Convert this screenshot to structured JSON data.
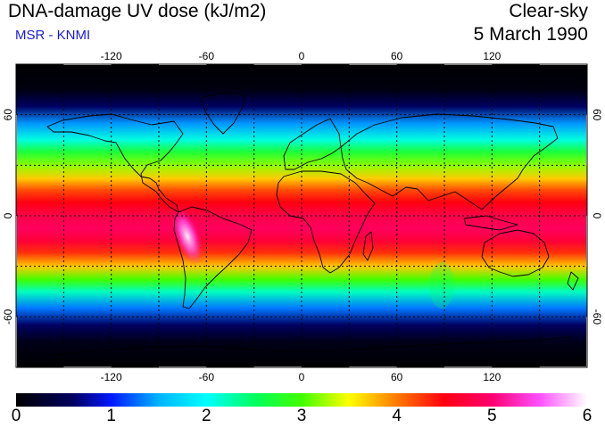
{
  "header": {
    "title": "DNA-damage UV dose (kJ/m2)",
    "subtitle": "MSR - KNMI",
    "condition": "Clear-sky",
    "date": "5 March 1990"
  },
  "map": {
    "projection": "equirectangular",
    "lon_range": [
      -180,
      180
    ],
    "lat_range": [
      -90,
      90
    ],
    "grid_lons": [
      -150,
      -120,
      -90,
      -60,
      -30,
      0,
      30,
      60,
      90,
      120,
      150
    ],
    "grid_lats": [
      -60,
      -30,
      0,
      30,
      60
    ],
    "lon_tick_labels": [
      {
        "lon": -120,
        "text": "-120"
      },
      {
        "lon": -60,
        "text": "-60"
      },
      {
        "lon": 0,
        "text": "0"
      },
      {
        "lon": 60,
        "text": "60"
      },
      {
        "lon": 120,
        "text": "120"
      }
    ],
    "lat_tick_labels": [
      {
        "lat": 60,
        "text": "60"
      },
      {
        "lat": 0,
        "text": "0"
      },
      {
        "lat": -60,
        "text": "-60"
      }
    ],
    "dose_profile": [
      {
        "lat": 90,
        "dose": 0.0
      },
      {
        "lat": 75,
        "dose": 0.1
      },
      {
        "lat": 65,
        "dose": 0.6
      },
      {
        "lat": 55,
        "dose": 1.4
      },
      {
        "lat": 45,
        "dose": 2.1
      },
      {
        "lat": 38,
        "dose": 2.7
      },
      {
        "lat": 30,
        "dose": 3.2
      },
      {
        "lat": 22,
        "dose": 3.7
      },
      {
        "lat": 15,
        "dose": 4.2
      },
      {
        "lat": 8,
        "dose": 4.5
      },
      {
        "lat": 0,
        "dose": 4.8
      },
      {
        "lat": -8,
        "dose": 4.9
      },
      {
        "lat": -15,
        "dose": 4.7
      },
      {
        "lat": -22,
        "dose": 4.3
      },
      {
        "lat": -30,
        "dose": 3.7
      },
      {
        "lat": -38,
        "dose": 3.0
      },
      {
        "lat": -45,
        "dose": 2.2
      },
      {
        "lat": -55,
        "dose": 1.3
      },
      {
        "lat": -65,
        "dose": 0.6
      },
      {
        "lat": -75,
        "dose": 0.15
      },
      {
        "lat": -90,
        "dose": 0.0
      }
    ],
    "peak_region": "Andes (~5.8 kJ/m2)"
  },
  "colorbar": {
    "min": 0,
    "max": 6,
    "labels": [
      "0",
      "1",
      "2",
      "3",
      "4",
      "5",
      "6"
    ],
    "stops": [
      {
        "value": 0.0,
        "color": "#000000"
      },
      {
        "value": 0.6,
        "color": "#000060"
      },
      {
        "value": 1.0,
        "color": "#0018ff"
      },
      {
        "value": 1.5,
        "color": "#00b4ff"
      },
      {
        "value": 2.0,
        "color": "#00ffff"
      },
      {
        "value": 2.5,
        "color": "#00ff60"
      },
      {
        "value": 3.0,
        "color": "#40ff00"
      },
      {
        "value": 3.5,
        "color": "#ffff00"
      },
      {
        "value": 4.0,
        "color": "#ff7a00"
      },
      {
        "value": 4.5,
        "color": "#ff0010"
      },
      {
        "value": 5.0,
        "color": "#ff0070"
      },
      {
        "value": 5.5,
        "color": "#ff50ff"
      },
      {
        "value": 6.0,
        "color": "#ffffff"
      }
    ]
  }
}
